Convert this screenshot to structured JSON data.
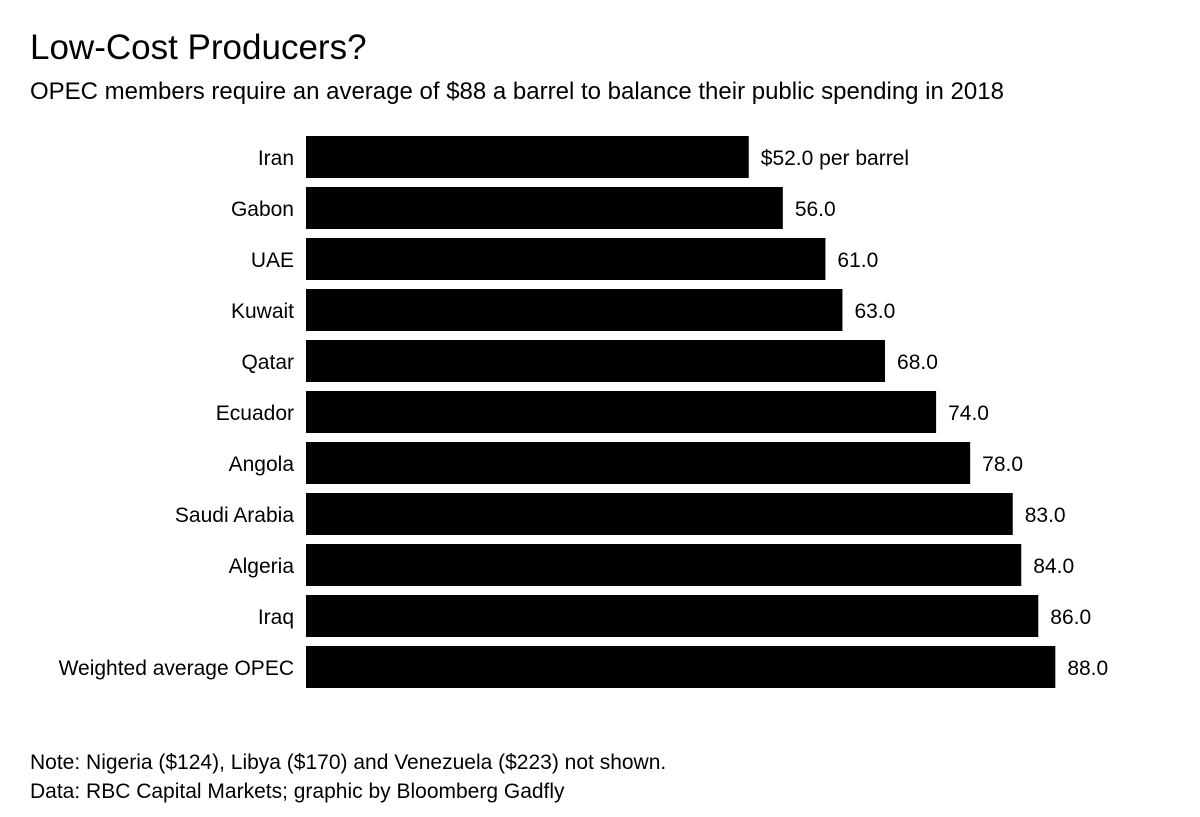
{
  "title": "Low-Cost Producers?",
  "subtitle": "OPEC members require an average of $88 a barrel to balance their public spending in 2018",
  "chart_data": {
    "type": "bar",
    "orientation": "horizontal",
    "categories": [
      "Iran",
      "Gabon",
      "UAE",
      "Kuwait",
      "Qatar",
      "Ecuador",
      "Angola",
      "Saudi Arabia",
      "Algeria",
      "Iraq",
      "Weighted average OPEC"
    ],
    "values": [
      52.0,
      56.0,
      61.0,
      63.0,
      68.0,
      74.0,
      78.0,
      83.0,
      84.0,
      86.0,
      88.0
    ],
    "value_labels": [
      "$52.0 per barrel",
      "56.0",
      "61.0",
      "63.0",
      "68.0",
      "74.0",
      "78.0",
      "83.0",
      "84.0",
      "86.0",
      "88.0"
    ],
    "bar_color": "#000000",
    "grid": false,
    "legend": "none"
  },
  "notes": {
    "note": "Note: Nigeria ($124), Libya ($170) and Venezuela ($223) not shown.",
    "source": "Data: RBC Capital Markets; graphic by Bloomberg Gadfly"
  }
}
